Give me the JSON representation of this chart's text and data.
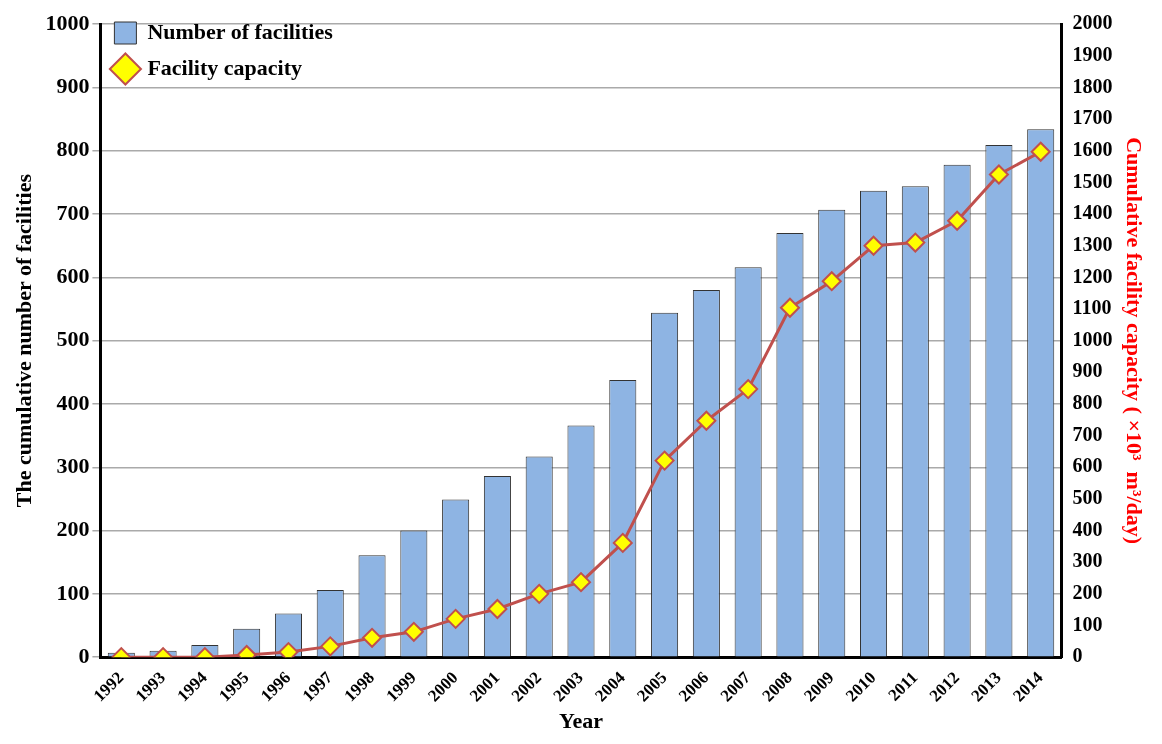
{
  "chart_data": {
    "type": "bar",
    "xlabel": "Year",
    "ylabel": "The cumulative number of facilities",
    "y2label": "Cumulative facility capacity ( ×10³  m³/day)",
    "categories": [
      "1992",
      "1993",
      "1994",
      "1995",
      "1996",
      "1997",
      "1998",
      "1999",
      "2000",
      "2001",
      "2002",
      "2003",
      "2004",
      "2005",
      "2006",
      "2007",
      "2008",
      "2009",
      "2010",
      "2011",
      "2012",
      "2013",
      "2014"
    ],
    "series": [
      {
        "name": "Number of facilities",
        "color": "#8eb4e3",
        "values": [
          7,
          10,
          19,
          45,
          69,
          106,
          161,
          200,
          249,
          286,
          317,
          366,
          438,
          544,
          580,
          616,
          670,
          707,
          737,
          744,
          778,
          809,
          834
        ]
      },
      {
        "name": "Facility capacity",
        "type": "line",
        "axis": "y2",
        "color": "#c0504d",
        "marker": "diamond",
        "values": [
          0,
          0,
          0,
          7,
          16,
          34,
          61,
          80,
          121,
          152,
          200,
          237,
          361,
          621,
          747,
          847,
          1104,
          1188,
          1300,
          1310,
          1379,
          1525,
          1597
        ]
      }
    ],
    "ylim": [
      0,
      1000
    ],
    "yticks": [
      0,
      100,
      200,
      300,
      400,
      500,
      600,
      700,
      800,
      900,
      1000
    ],
    "y2lim": [
      0,
      2000
    ],
    "y2ticks": [
      0,
      100,
      200,
      300,
      400,
      500,
      600,
      700,
      800,
      900,
      1000,
      1100,
      1200,
      1300,
      1400,
      1500,
      1600,
      1700,
      1800,
      1900,
      2000
    ],
    "grid": "y",
    "legend": "top left"
  }
}
